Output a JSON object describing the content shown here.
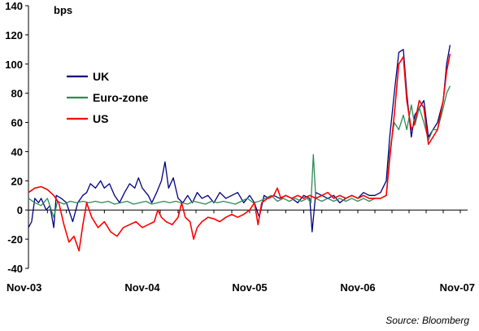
{
  "chart_data": {
    "type": "line",
    "title": "",
    "unit_label": "bps",
    "xlabel": "",
    "ylabel": "",
    "ylim": [
      -40,
      140
    ],
    "yticks": [
      -40,
      -20,
      0,
      20,
      40,
      60,
      80,
      100,
      120,
      140
    ],
    "x_start": "Nov-03",
    "x_end": "Nov-07",
    "xtick_labels": [
      "Nov-03",
      "Nov-04",
      "Nov-05",
      "Nov-06",
      "Nov-07"
    ],
    "grid": false,
    "legend_position": "left",
    "source": "Source: Bloomberg",
    "series": [
      {
        "name": "UK",
        "color": "#000080",
        "values": [
          [
            0,
            -12
          ],
          [
            0.25,
            -8
          ],
          [
            0.5,
            8
          ],
          [
            0.8,
            5
          ],
          [
            1.0,
            8
          ],
          [
            1.4,
            0
          ],
          [
            1.7,
            3
          ],
          [
            2.0,
            -12
          ],
          [
            2.2,
            10
          ],
          [
            2.6,
            8
          ],
          [
            3.0,
            5
          ],
          [
            3.5,
            -8
          ],
          [
            3.9,
            5
          ],
          [
            4.3,
            10
          ],
          [
            4.6,
            12
          ],
          [
            4.9,
            18
          ],
          [
            5.3,
            15
          ],
          [
            5.7,
            20
          ],
          [
            6.0,
            15
          ],
          [
            6.4,
            18
          ],
          [
            6.8,
            10
          ],
          [
            7.2,
            5
          ],
          [
            7.6,
            12
          ],
          [
            8.0,
            18
          ],
          [
            8.4,
            15
          ],
          [
            8.7,
            22
          ],
          [
            9.0,
            15
          ],
          [
            9.5,
            10
          ],
          [
            9.8,
            5
          ],
          [
            10.2,
            12
          ],
          [
            10.6,
            20
          ],
          [
            10.9,
            33
          ],
          [
            11.2,
            15
          ],
          [
            11.6,
            22
          ],
          [
            12.0,
            8
          ],
          [
            12.4,
            5
          ],
          [
            12.8,
            10
          ],
          [
            13.2,
            5
          ],
          [
            13.6,
            12
          ],
          [
            14.0,
            8
          ],
          [
            14.5,
            10
          ],
          [
            15.0,
            5
          ],
          [
            15.5,
            12
          ],
          [
            16.0,
            8
          ],
          [
            16.5,
            10
          ],
          [
            17.0,
            12
          ],
          [
            17.5,
            5
          ],
          [
            18.0,
            10
          ],
          [
            18.4,
            5
          ],
          [
            18.8,
            -5
          ],
          [
            19.2,
            10
          ],
          [
            19.6,
            8
          ],
          [
            20.0,
            10
          ],
          [
            20.5,
            8
          ],
          [
            21.0,
            10
          ],
          [
            21.5,
            8
          ],
          [
            22.0,
            5
          ],
          [
            22.5,
            10
          ],
          [
            23.0,
            8
          ],
          [
            23.2,
            -15
          ],
          [
            23.5,
            12
          ],
          [
            24.0,
            10
          ],
          [
            24.5,
            8
          ],
          [
            25.0,
            10
          ],
          [
            25.5,
            5
          ],
          [
            26.0,
            8
          ],
          [
            26.5,
            10
          ],
          [
            27.0,
            8
          ],
          [
            27.5,
            12
          ],
          [
            28.0,
            10
          ],
          [
            28.5,
            10
          ],
          [
            29.0,
            12
          ],
          [
            29.5,
            20
          ],
          [
            29.8,
            50
          ],
          [
            30.2,
            80
          ],
          [
            30.6,
            108
          ],
          [
            31.0,
            110
          ],
          [
            31.3,
            80
          ],
          [
            31.7,
            50
          ],
          [
            32.0,
            65
          ],
          [
            32.4,
            70
          ],
          [
            32.8,
            75
          ],
          [
            33.2,
            50
          ],
          [
            33.6,
            55
          ],
          [
            34.0,
            60
          ],
          [
            34.5,
            75
          ],
          [
            34.8,
            100
          ],
          [
            35.1,
            113
          ]
        ]
      },
      {
        "name": "Euro-zone",
        "color": "#2E8B57",
        "values": [
          [
            0,
            8
          ],
          [
            0.5,
            5
          ],
          [
            1.0,
            3
          ],
          [
            1.5,
            8
          ],
          [
            2.0,
            -5
          ],
          [
            2.3,
            6
          ],
          [
            2.8,
            4
          ],
          [
            3.3,
            6
          ],
          [
            3.8,
            5
          ],
          [
            4.3,
            6
          ],
          [
            4.8,
            5
          ],
          [
            5.3,
            6
          ],
          [
            5.8,
            5
          ],
          [
            6.3,
            6
          ],
          [
            6.8,
            4
          ],
          [
            7.3,
            5
          ],
          [
            7.8,
            6
          ],
          [
            8.3,
            4
          ],
          [
            8.8,
            5
          ],
          [
            9.3,
            6
          ],
          [
            9.8,
            4
          ],
          [
            10.3,
            5
          ],
          [
            10.8,
            6
          ],
          [
            11.3,
            5
          ],
          [
            11.8,
            6
          ],
          [
            12.3,
            5
          ],
          [
            12.8,
            4
          ],
          [
            13.3,
            6
          ],
          [
            13.8,
            5
          ],
          [
            14.3,
            4
          ],
          [
            14.8,
            6
          ],
          [
            15.3,
            5
          ],
          [
            15.8,
            6
          ],
          [
            16.3,
            5
          ],
          [
            16.8,
            4
          ],
          [
            17.3,
            6
          ],
          [
            17.8,
            8
          ],
          [
            18.3,
            5
          ],
          [
            18.8,
            6
          ],
          [
            19.3,
            8
          ],
          [
            19.8,
            10
          ],
          [
            20.3,
            6
          ],
          [
            20.8,
            8
          ],
          [
            21.3,
            6
          ],
          [
            21.8,
            8
          ],
          [
            22.3,
            6
          ],
          [
            22.8,
            8
          ],
          [
            23.1,
            5
          ],
          [
            23.3,
            38
          ],
          [
            23.5,
            8
          ],
          [
            24.0,
            6
          ],
          [
            24.5,
            8
          ],
          [
            25.0,
            6
          ],
          [
            25.5,
            8
          ],
          [
            26.0,
            6
          ],
          [
            26.5,
            8
          ],
          [
            27.0,
            6
          ],
          [
            27.5,
            8
          ],
          [
            28.0,
            6
          ],
          [
            28.5,
            8
          ],
          [
            29.0,
            8
          ],
          [
            29.5,
            10
          ],
          [
            29.8,
            40
          ],
          [
            30.2,
            60
          ],
          [
            30.6,
            55
          ],
          [
            31.0,
            65
          ],
          [
            31.3,
            55
          ],
          [
            31.7,
            72
          ],
          [
            32.0,
            58
          ],
          [
            32.4,
            70
          ],
          [
            32.8,
            60
          ],
          [
            33.2,
            48
          ],
          [
            33.6,
            55
          ],
          [
            34.0,
            55
          ],
          [
            34.5,
            70
          ],
          [
            34.8,
            80
          ],
          [
            35.1,
            85
          ]
        ]
      },
      {
        "name": "US",
        "color": "#FF0000",
        "values": [
          [
            0,
            12
          ],
          [
            0.5,
            15
          ],
          [
            1.0,
            16
          ],
          [
            1.5,
            14
          ],
          [
            2.0,
            10
          ],
          [
            2.4,
            5
          ],
          [
            2.8,
            -10
          ],
          [
            3.2,
            -22
          ],
          [
            3.6,
            -18
          ],
          [
            4.0,
            -28
          ],
          [
            4.3,
            -10
          ],
          [
            4.6,
            5
          ],
          [
            5.0,
            -5
          ],
          [
            5.5,
            -12
          ],
          [
            6.0,
            -8
          ],
          [
            6.5,
            -15
          ],
          [
            7.0,
            -18
          ],
          [
            7.5,
            -12
          ],
          [
            8.0,
            -10
          ],
          [
            8.5,
            -8
          ],
          [
            9.0,
            -12
          ],
          [
            9.5,
            -10
          ],
          [
            10.0,
            -8
          ],
          [
            10.3,
            0
          ],
          [
            10.6,
            -5
          ],
          [
            11.0,
            -8
          ],
          [
            11.5,
            -10
          ],
          [
            12.0,
            -5
          ],
          [
            12.3,
            5
          ],
          [
            12.6,
            -5
          ],
          [
            13.0,
            -8
          ],
          [
            13.3,
            -20
          ],
          [
            13.6,
            -12
          ],
          [
            14.0,
            -8
          ],
          [
            14.5,
            -5
          ],
          [
            15.0,
            -6
          ],
          [
            15.5,
            -8
          ],
          [
            16.0,
            -5
          ],
          [
            16.5,
            -3
          ],
          [
            17.0,
            -5
          ],
          [
            17.5,
            -3
          ],
          [
            18.0,
            0
          ],
          [
            18.4,
            5
          ],
          [
            18.7,
            -10
          ],
          [
            19.0,
            5
          ],
          [
            19.5,
            8
          ],
          [
            20.0,
            10
          ],
          [
            20.3,
            15
          ],
          [
            20.6,
            8
          ],
          [
            21.0,
            10
          ],
          [
            21.5,
            8
          ],
          [
            22.0,
            10
          ],
          [
            22.5,
            8
          ],
          [
            23.0,
            10
          ],
          [
            23.5,
            8
          ],
          [
            24.0,
            10
          ],
          [
            24.5,
            12
          ],
          [
            25.0,
            8
          ],
          [
            25.5,
            10
          ],
          [
            26.0,
            8
          ],
          [
            26.5,
            10
          ],
          [
            27.0,
            8
          ],
          [
            27.5,
            10
          ],
          [
            28.0,
            8
          ],
          [
            28.5,
            8
          ],
          [
            29.0,
            8
          ],
          [
            29.5,
            10
          ],
          [
            29.8,
            35
          ],
          [
            30.2,
            65
          ],
          [
            30.6,
            100
          ],
          [
            31.0,
            105
          ],
          [
            31.3,
            75
          ],
          [
            31.7,
            55
          ],
          [
            32.0,
            60
          ],
          [
            32.4,
            75
          ],
          [
            32.8,
            70
          ],
          [
            33.2,
            45
          ],
          [
            33.6,
            50
          ],
          [
            34.0,
            55
          ],
          [
            34.5,
            75
          ],
          [
            34.8,
            95
          ],
          [
            35.1,
            107
          ]
        ]
      }
    ]
  }
}
